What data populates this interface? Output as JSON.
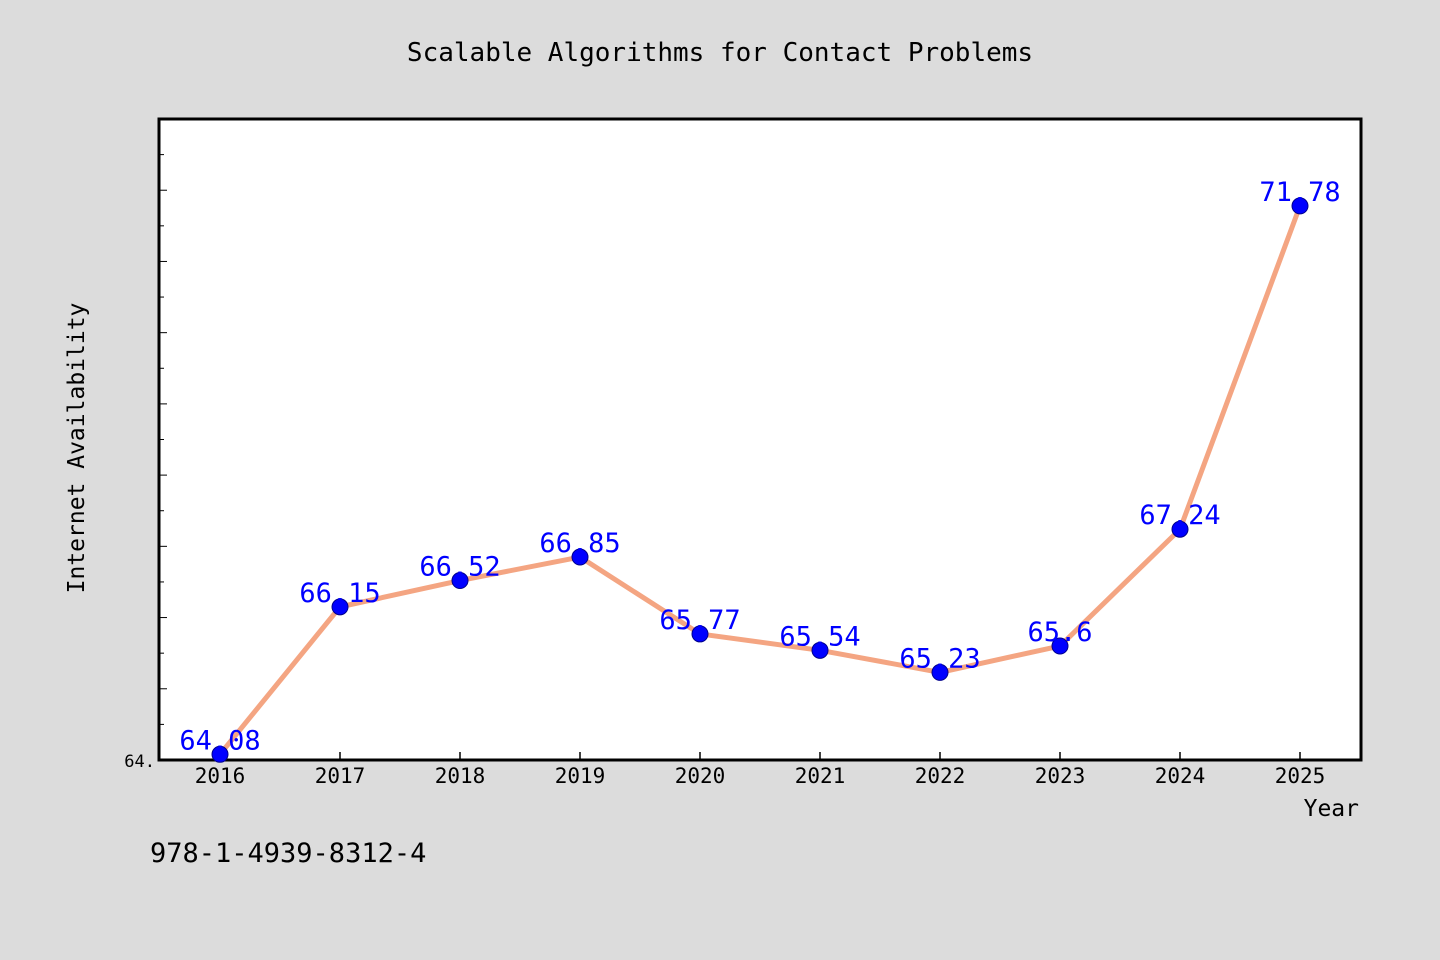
{
  "chart_data": {
    "type": "line",
    "title": "Scalable Algorithms for Contact Problems",
    "xlabel": "Year",
    "ylabel": "Internet Availability",
    "y_tick_label": "64.",
    "categories": [
      "2016",
      "2017",
      "2018",
      "2019",
      "2020",
      "2021",
      "2022",
      "2023",
      "2024",
      "2025"
    ],
    "series": [
      {
        "values": [
          64.08,
          66.15,
          66.52,
          66.85,
          65.77,
          65.54,
          65.23,
          65.6,
          67.24,
          71.78
        ],
        "labels": [
          "64.08",
          "66.15",
          "66.52",
          "66.85",
          "65.77",
          "65.54",
          "65.23",
          "65.6",
          "67.24",
          "71.78"
        ]
      }
    ],
    "ylim": [
      64.0,
      73.0
    ],
    "grid": false,
    "legend": "none",
    "colors": {
      "line": "#f4a582",
      "marker": "#0000ff",
      "label": "#0000ff",
      "plot_bg": "#ffffff",
      "figure_bg": "#dcdcdc"
    }
  },
  "footer_code": "978-1-4939-8312-4"
}
